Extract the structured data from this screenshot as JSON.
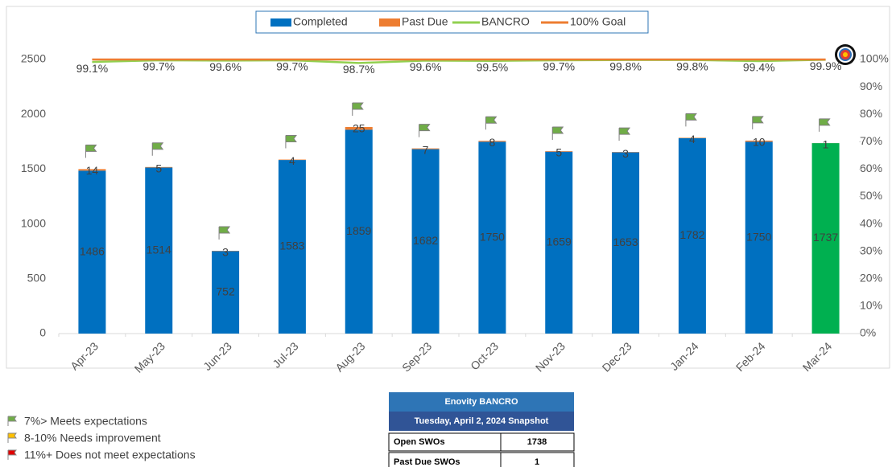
{
  "chart_data": {
    "type": "bar",
    "stacked": true,
    "categories": [
      "Apr-23",
      "May-23",
      "Jun-23",
      "Jul-23",
      "Aug-23",
      "Sep-23",
      "Oct-23",
      "Nov-23",
      "Dec-23",
      "Jan-24",
      "Feb-24",
      "Mar-24"
    ],
    "series": [
      {
        "name": "Completed",
        "color": "#0070c0",
        "colors": [
          "#0070c0",
          "#0070c0",
          "#0070c0",
          "#0070c0",
          "#0070c0",
          "#0070c0",
          "#0070c0",
          "#0070c0",
          "#0070c0",
          "#0070c0",
          "#0070c0",
          "#00b050"
        ],
        "values": [
          1486,
          1514,
          752,
          1583,
          1859,
          1682,
          1750,
          1659,
          1653,
          1782,
          1750,
          1737
        ]
      },
      {
        "name": "Past Due",
        "color": "#ed7d31",
        "values": [
          14,
          5,
          3,
          4,
          25,
          7,
          8,
          5,
          3,
          4,
          10,
          1
        ]
      },
      {
        "name": "BANCRO",
        "type": "line",
        "axis": "y2",
        "color": "#92d050",
        "values": [
          99.1,
          99.7,
          99.6,
          99.7,
          98.7,
          99.6,
          99.5,
          99.7,
          99.8,
          99.8,
          99.4,
          99.9
        ],
        "value_labels": [
          "99.1%",
          "99.7%",
          "99.6%",
          "99.7%",
          "98.7%",
          "99.6%",
          "99.5%",
          "99.7%",
          "99.8%",
          "99.8%",
          "99.4%",
          "99.9%"
        ]
      },
      {
        "name": "100% Goal",
        "type": "line",
        "axis": "y2",
        "color": "#ed7d31",
        "values": [
          100,
          100,
          100,
          100,
          100,
          100,
          100,
          100,
          100,
          100,
          100,
          100
        ]
      }
    ],
    "ylim": [
      0,
      2500
    ],
    "yticks": [
      0,
      500,
      1000,
      1500,
      2000,
      2500
    ],
    "y2lim": [
      0,
      100
    ],
    "y2ticks": [
      {
        "value": 0,
        "label": "0%"
      },
      {
        "value": 10,
        "label": "10%"
      },
      {
        "value": 20,
        "label": "20%"
      },
      {
        "value": 30,
        "label": "30%"
      },
      {
        "value": 40,
        "label": "40%"
      },
      {
        "value": 50,
        "label": "50%"
      },
      {
        "value": 60,
        "label": "60%"
      },
      {
        "value": 70,
        "label": "70%"
      },
      {
        "value": 80,
        "label": "80%"
      },
      {
        "value": 90,
        "label": "90%"
      },
      {
        "value": 100,
        "label": "100%"
      }
    ],
    "grid": false,
    "legend": "top"
  },
  "notes": [
    "7%> Meets expectations",
    "8-10% Needs improvement",
    "11%+  Does not meet expectations"
  ],
  "table": {
    "title": "Enovity BANCRO",
    "subtitle": "Tuesday, April 2, 2024 Snapshot",
    "rows": [
      [
        "Open SWOs",
        "1738"
      ],
      [
        "Past Due SWOs",
        "1"
      ]
    ]
  }
}
